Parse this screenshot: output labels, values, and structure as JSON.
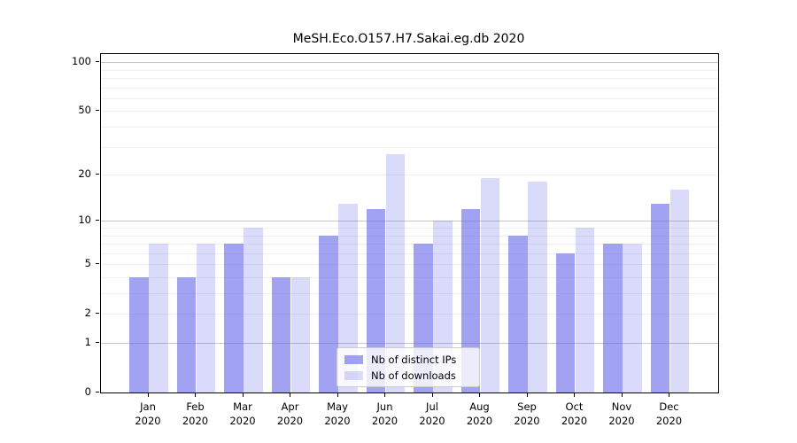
{
  "title": "MeSH.Eco.O157.H7.Sakai.eg.db 2020",
  "chart_data": {
    "type": "bar",
    "title": "MeSH.Eco.O157.H7.Sakai.eg.db 2020",
    "categories": [
      "Jan",
      "Feb",
      "Mar",
      "Apr",
      "May",
      "Jun",
      "Jul",
      "Aug",
      "Sep",
      "Oct",
      "Nov",
      "Dec"
    ],
    "year": "2020",
    "series": [
      {
        "name": "Nb of distinct IPs",
        "color": "rgba(100,100,235,0.60)",
        "values": [
          4,
          4,
          7,
          4,
          8,
          12,
          7,
          12,
          8,
          6,
          7,
          13
        ]
      },
      {
        "name": "Nb of downloads",
        "color": "rgba(100,100,235,0.24)",
        "values": [
          7,
          7,
          9,
          4,
          13,
          27,
          10,
          19,
          18,
          9,
          7,
          16
        ]
      }
    ],
    "yscale": "log1p",
    "ylim": [
      0,
      113
    ],
    "yticks": [
      0,
      1,
      2,
      5,
      10,
      20,
      50,
      100
    ],
    "ytick_labels": [
      "0",
      "1",
      "2",
      "5",
      "10",
      "20",
      "50",
      "100"
    ],
    "grid_minor_values": [
      2,
      3,
      4,
      5,
      6,
      7,
      8,
      9,
      20,
      30,
      40,
      50,
      60,
      70,
      80,
      90
    ],
    "grid_major_values": [
      1,
      10,
      100
    ],
    "legend_position": "bottom-center",
    "grid": "on",
    "colors": {
      "axis": "#000000",
      "grid_minor": "#efefef",
      "grid_major": "#c6c6c6",
      "legend_border": "#cccccc"
    }
  }
}
